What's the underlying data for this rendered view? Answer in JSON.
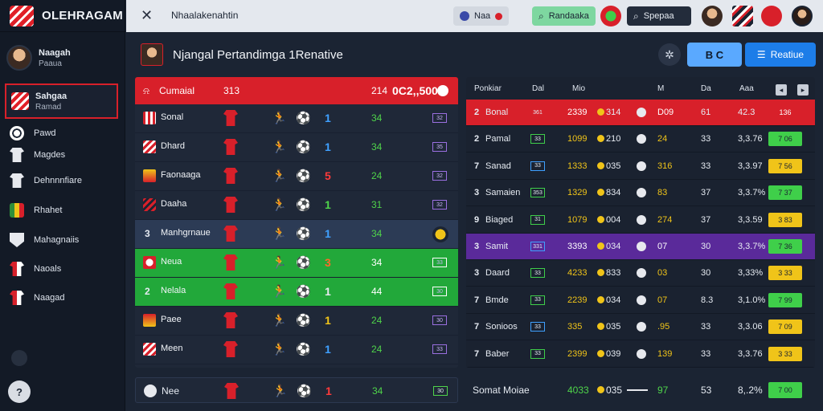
{
  "app": {
    "brand": "OLEHRAGAM",
    "help": "?"
  },
  "sidebar": {
    "profile": {
      "name": "Naagah",
      "sub": "Paaua"
    },
    "active": {
      "title": "Sahgaa",
      "sub": "Ramad"
    },
    "items": [
      {
        "label": "Pawd",
        "icon": "ball-icon"
      },
      {
        "label": "Magdes",
        "icon": "shirt-icon"
      },
      {
        "label": "Dehnnnfiare",
        "icon": "player-icon"
      },
      {
        "label": "Rhahet",
        "icon": "badge-icon"
      },
      {
        "label": "Mahagnaiis",
        "icon": "shield-icon"
      },
      {
        "label": "Naoals",
        "icon": "shirt-red-icon"
      },
      {
        "label": "Naagad",
        "icon": "club-icon"
      }
    ]
  },
  "topbar": {
    "title": "Nhaalakenahtin",
    "chip1": "Naa",
    "chip2": "Randaaka",
    "search_label": "Spepaa"
  },
  "header": {
    "title": "Njangal Pertandimga 1Renative",
    "btn1": "B C",
    "btn2": "Reatiue"
  },
  "colors": {
    "accent_red": "#d8202a",
    "accent_green": "#22a83a",
    "accent_purple": "#5a2a9a",
    "accent_blue": "#1d7de8"
  },
  "left_table": {
    "header": {
      "name": "Cumaial",
      "col1": "313",
      "col2": "214",
      "col3": "0C2,,500"
    },
    "rows": [
      {
        "name": "Sonal",
        "num": "1",
        "val": "34",
        "box": "32",
        "num_color": "#3fa0ff",
        "highlight": "none"
      },
      {
        "name": "Dhard",
        "num": "1",
        "val": "34",
        "box": "35",
        "num_color": "#3fa0ff",
        "highlight": "none"
      },
      {
        "name": "Faonaaga",
        "num": "5",
        "val": "24",
        "box": "32",
        "num_color": "#ff3a3a",
        "highlight": "none"
      },
      {
        "name": "Daaha",
        "num": "1",
        "val": "31",
        "box": "32",
        "num_color": "#4fd44a",
        "highlight": "none"
      },
      {
        "name": "Manhgrnaue",
        "num": "1",
        "val": "34",
        "box": "",
        "num_color": "#3fa0ff",
        "highlight": "blue",
        "pos": "3"
      },
      {
        "name": "Neua",
        "num": "3",
        "val": "34",
        "box": "33",
        "num_color": "#ff6a2a",
        "highlight": "green"
      },
      {
        "name": "Nelala",
        "num": "1",
        "val": "44",
        "box": "30",
        "num_color": "#e7e9ee",
        "highlight": "green",
        "pos": "2"
      },
      {
        "name": "Paee",
        "num": "1",
        "val": "24",
        "box": "30",
        "num_color": "#f0c419",
        "highlight": "none"
      },
      {
        "name": "Meen",
        "num": "1",
        "val": "24",
        "box": "33",
        "num_color": "#3fa0ff",
        "highlight": "none"
      }
    ],
    "footer": {
      "name": "Nee",
      "num": "1",
      "val": "34",
      "box": "30"
    }
  },
  "right_table": {
    "columns": [
      "Ponkiar",
      "Dal",
      "Mio",
      "M",
      "Da",
      "Aaa"
    ],
    "rows": [
      {
        "pos": "2",
        "name": "Bonal",
        "mini": "361",
        "v1": "2339",
        "v2": "314",
        "v3": "D09",
        "v4": "61",
        "v5": "42.3",
        "chip": "136",
        "chip_color": "none",
        "highlight": "red"
      },
      {
        "pos": "2",
        "name": "Pamal",
        "mini": "33",
        "v1": "1099",
        "v2": "210",
        "v3": "24",
        "v4": "33",
        "v5": "3,3.76",
        "chip": "7 06",
        "chip_color": "#3fcf4a",
        "highlight": "none"
      },
      {
        "pos": "7",
        "name": "Sanad",
        "mini": "33",
        "v1": "1333",
        "v2": "035",
        "v3": "316",
        "v4": "33",
        "v5": "3,3.97",
        "chip": "7 56",
        "chip_color": "#f0c419",
        "highlight": "none"
      },
      {
        "pos": "3",
        "name": "Samaien",
        "mini": "353",
        "v1": "1329",
        "v2": "834",
        "v3": "83",
        "v4": "37",
        "v5": "3,3.7%",
        "chip": "7 37",
        "chip_color": "#3fcf4a",
        "highlight": "none"
      },
      {
        "pos": "9",
        "name": "Biaged",
        "mini": "31",
        "v1": "1079",
        "v2": "004",
        "v3": "274",
        "v4": "37",
        "v5": "3,3.59",
        "chip": "3 83",
        "chip_color": "#f0c419",
        "highlight": "none"
      },
      {
        "pos": "3",
        "name": "Samit",
        "mini": "331",
        "v1": "3393",
        "v2": "034",
        "v3": "07",
        "v4": "30",
        "v5": "3,3.7%",
        "chip": "7 36",
        "chip_color": "#3fcf4a",
        "highlight": "purple"
      },
      {
        "pos": "3",
        "name": "Daard",
        "mini": "33",
        "v1": "4233",
        "v2": "833",
        "v3": "03",
        "v4": "30",
        "v5": "3,33%",
        "chip": "3 33",
        "chip_color": "#f0c419",
        "highlight": "none"
      },
      {
        "pos": "7",
        "name": "Bmde",
        "mini": "33",
        "v1": "2239",
        "v2": "034",
        "v3": "07",
        "v4": "8.3",
        "v5": "3,1.0%",
        "chip": "7 99",
        "chip_color": "#3fcf4a",
        "highlight": "none"
      },
      {
        "pos": "7",
        "name": "Sonioos",
        "mini": "33",
        "v1": "335",
        "v2": "035",
        "v3": ".95",
        "v4": "33",
        "v5": "3,3.06",
        "chip": "7 09",
        "chip_color": "#f0c419",
        "highlight": "none"
      },
      {
        "pos": "7",
        "name": "Baber",
        "mini": "33",
        "v1": "2399",
        "v2": "039",
        "v3": "139",
        "v4": "33",
        "v5": "3,3.76",
        "chip": "3 33",
        "chip_color": "#f0c419",
        "highlight": "none"
      }
    ],
    "footer": {
      "name": "Somat Moiae",
      "v1": "4033",
      "v2": "035",
      "v3": "97",
      "v4": "53",
      "v5": "8,.2%",
      "chip": "7 00"
    }
  }
}
